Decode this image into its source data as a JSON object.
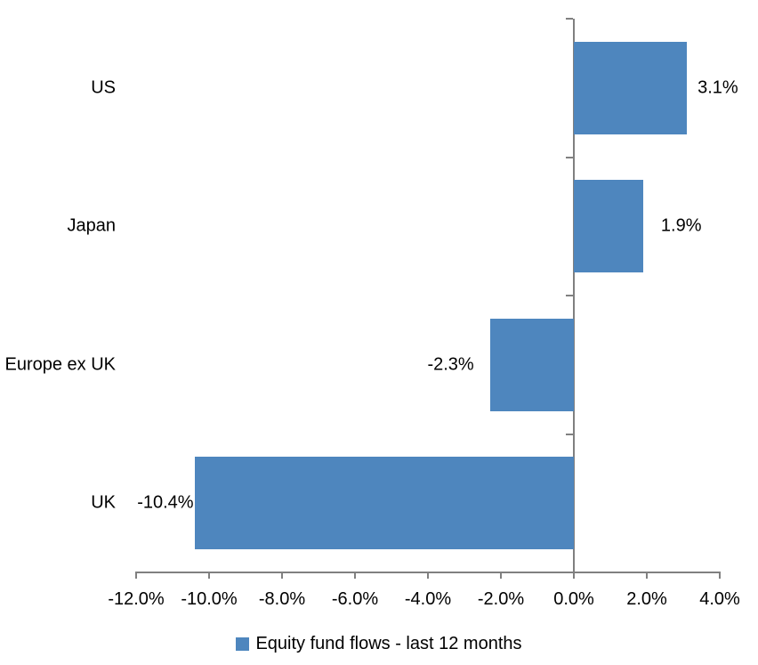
{
  "chart_data": {
    "type": "bar",
    "orientation": "horizontal",
    "title": "",
    "categories": [
      "US",
      "Japan",
      "Europe ex UK",
      "UK"
    ],
    "values": [
      3.1,
      1.9,
      -2.3,
      -10.4
    ],
    "data_labels": [
      "3.1%",
      "1.9%",
      "-2.3%",
      "-10.4%"
    ],
    "series": [
      {
        "name": "Equity fund flows - last 12 months",
        "values": [
          3.1,
          1.9,
          -2.3,
          -10.4
        ]
      }
    ],
    "legend": "Equity fund flows - last 12 months",
    "legend_position": "bottom",
    "legend_marker": "square-icon",
    "xlabel": "",
    "ylabel": "",
    "xlim": [
      -12,
      4
    ],
    "x_tick_interval": 2,
    "x_tick_labels": [
      "-12.0%",
      "-10.0%",
      "-8.0%",
      "-6.0%",
      "-4.0%",
      "-2.0%",
      "0.0%",
      "2.0%",
      "4.0%"
    ],
    "grid": false,
    "colors": {
      "bar": "#4E86BE",
      "axis": "#808080",
      "text": "#000000",
      "background": "#FFFFFF"
    }
  }
}
